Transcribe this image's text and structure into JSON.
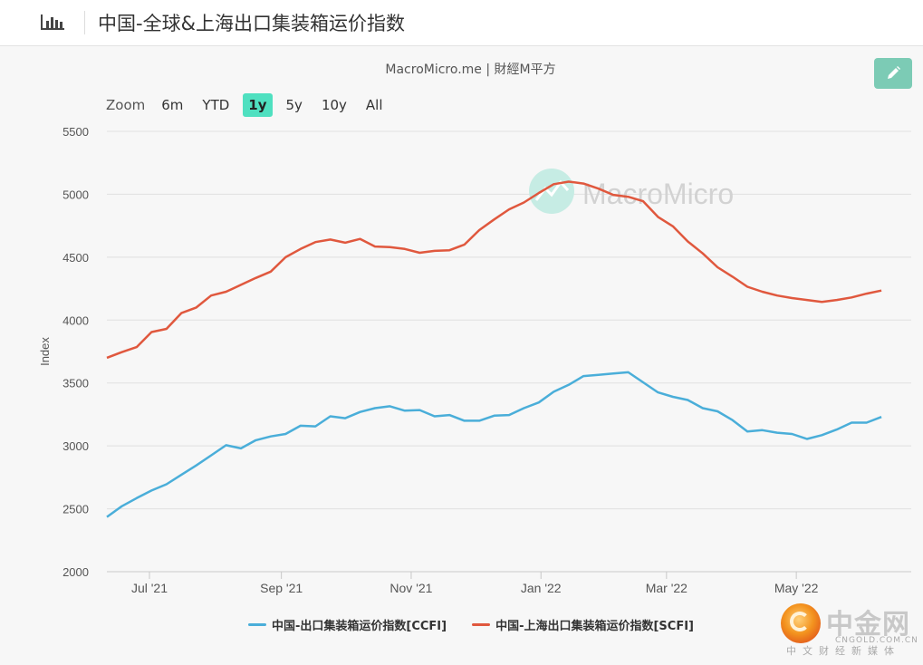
{
  "header": {
    "title": "中国-全球&上海出口集装箱运价指数"
  },
  "credit": "MacroMicro.me | 財經M平方",
  "watermark": "MacroMicro",
  "zoom": {
    "label": "Zoom",
    "options": [
      "6m",
      "YTD",
      "1y",
      "5y",
      "10y",
      "All"
    ],
    "selected": "1y"
  },
  "colors": {
    "ccfi": "#4aaed9",
    "scfi": "#e0583e",
    "accent": "#4fe0c0",
    "edit_button": "#7ccbb5"
  },
  "chart_data": {
    "type": "line",
    "ylabel": "Index",
    "ylim": [
      2000,
      5500
    ],
    "yticks": [
      2000,
      2500,
      3000,
      3500,
      4000,
      4500,
      5000,
      5500
    ],
    "xlim": [
      "2021-06-11",
      "2022-06-24"
    ],
    "xticks": [
      {
        "date": "2021-07-01",
        "label": "Jul '21"
      },
      {
        "date": "2021-09-01",
        "label": "Sep '21"
      },
      {
        "date": "2021-11-01",
        "label": "Nov '21"
      },
      {
        "date": "2022-01-01",
        "label": "Jan '22"
      },
      {
        "date": "2022-03-01",
        "label": "Mar '22"
      },
      {
        "date": "2022-05-01",
        "label": "May '22"
      }
    ],
    "grid": true,
    "legend_position": "bottom",
    "series": [
      {
        "name": "中国-出口集装箱运价指数[CCFI]",
        "color": "#4aaed9",
        "points": [
          [
            "2021-06-11",
            2435
          ],
          [
            "2021-06-18",
            2520
          ],
          [
            "2021-06-25",
            2585
          ],
          [
            "2021-07-02",
            2645
          ],
          [
            "2021-07-09",
            2695
          ],
          [
            "2021-07-16",
            2770
          ],
          [
            "2021-07-23",
            2845
          ],
          [
            "2021-07-30",
            2925
          ],
          [
            "2021-08-06",
            3005
          ],
          [
            "2021-08-13",
            2980
          ],
          [
            "2021-08-20",
            3045
          ],
          [
            "2021-08-27",
            3075
          ],
          [
            "2021-09-03",
            3095
          ],
          [
            "2021-09-10",
            3160
          ],
          [
            "2021-09-17",
            3155
          ],
          [
            "2021-09-24",
            3235
          ],
          [
            "2021-10-01",
            3220
          ],
          [
            "2021-10-08",
            3270
          ],
          [
            "2021-10-15",
            3300
          ],
          [
            "2021-10-22",
            3315
          ],
          [
            "2021-10-29",
            3280
          ],
          [
            "2021-11-05",
            3285
          ],
          [
            "2021-11-12",
            3235
          ],
          [
            "2021-11-19",
            3245
          ],
          [
            "2021-11-26",
            3200
          ],
          [
            "2021-12-03",
            3200
          ],
          [
            "2021-12-10",
            3240
          ],
          [
            "2021-12-17",
            3245
          ],
          [
            "2021-12-24",
            3300
          ],
          [
            "2021-12-31",
            3345
          ],
          [
            "2022-01-07",
            3430
          ],
          [
            "2022-01-14",
            3485
          ],
          [
            "2022-01-21",
            3555
          ],
          [
            "2022-01-28",
            3565
          ],
          [
            "2022-02-04",
            3575
          ],
          [
            "2022-02-11",
            3585
          ],
          [
            "2022-02-18",
            3505
          ],
          [
            "2022-02-25",
            3425
          ],
          [
            "2022-03-04",
            3390
          ],
          [
            "2022-03-11",
            3365
          ],
          [
            "2022-03-18",
            3300
          ],
          [
            "2022-03-25",
            3275
          ],
          [
            "2022-04-01",
            3205
          ],
          [
            "2022-04-08",
            3115
          ],
          [
            "2022-04-15",
            3125
          ],
          [
            "2022-04-22",
            3105
          ],
          [
            "2022-04-29",
            3095
          ],
          [
            "2022-05-06",
            3055
          ],
          [
            "2022-05-13",
            3085
          ],
          [
            "2022-05-20",
            3130
          ],
          [
            "2022-05-27",
            3185
          ],
          [
            "2022-06-03",
            3185
          ],
          [
            "2022-06-10",
            3230
          ]
        ]
      },
      {
        "name": "中国-上海出口集装箱运价指数[SCFI]",
        "color": "#e0583e",
        "points": [
          [
            "2021-06-11",
            3700
          ],
          [
            "2021-06-18",
            3745
          ],
          [
            "2021-06-25",
            3785
          ],
          [
            "2021-07-02",
            3905
          ],
          [
            "2021-07-09",
            3930
          ],
          [
            "2021-07-16",
            4055
          ],
          [
            "2021-07-23",
            4100
          ],
          [
            "2021-07-30",
            4195
          ],
          [
            "2021-08-06",
            4225
          ],
          [
            "2021-08-13",
            4280
          ],
          [
            "2021-08-20",
            4335
          ],
          [
            "2021-08-27",
            4385
          ],
          [
            "2021-09-03",
            4500
          ],
          [
            "2021-09-10",
            4565
          ],
          [
            "2021-09-17",
            4620
          ],
          [
            "2021-09-24",
            4640
          ],
          [
            "2021-10-01",
            4615
          ],
          [
            "2021-10-08",
            4645
          ],
          [
            "2021-10-15",
            4585
          ],
          [
            "2021-10-22",
            4580
          ],
          [
            "2021-10-29",
            4565
          ],
          [
            "2021-11-05",
            4535
          ],
          [
            "2021-11-12",
            4550
          ],
          [
            "2021-11-19",
            4555
          ],
          [
            "2021-11-26",
            4600
          ],
          [
            "2021-12-03",
            4715
          ],
          [
            "2021-12-10",
            4800
          ],
          [
            "2021-12-17",
            4880
          ],
          [
            "2021-12-24",
            4935
          ],
          [
            "2021-12-31",
            5010
          ],
          [
            "2022-01-07",
            5080
          ],
          [
            "2022-01-14",
            5100
          ],
          [
            "2022-01-21",
            5085
          ],
          [
            "2022-01-28",
            5045
          ],
          [
            "2022-02-04",
            4995
          ],
          [
            "2022-02-11",
            4980
          ],
          [
            "2022-02-18",
            4945
          ],
          [
            "2022-02-25",
            4820
          ],
          [
            "2022-03-04",
            4745
          ],
          [
            "2022-03-11",
            4625
          ],
          [
            "2022-03-18",
            4530
          ],
          [
            "2022-03-25",
            4420
          ],
          [
            "2022-04-01",
            4345
          ],
          [
            "2022-04-08",
            4265
          ],
          [
            "2022-04-15",
            4225
          ],
          [
            "2022-04-22",
            4195
          ],
          [
            "2022-04-29",
            4175
          ],
          [
            "2022-05-06",
            4160
          ],
          [
            "2022-05-13",
            4145
          ],
          [
            "2022-05-20",
            4160
          ],
          [
            "2022-05-27",
            4180
          ],
          [
            "2022-06-03",
            4210
          ],
          [
            "2022-06-10",
            4235
          ]
        ]
      }
    ]
  },
  "logo": {
    "name": "中金网",
    "domain": "CNGOLD.COM.CN",
    "tagline": "中文财经新媒体"
  }
}
